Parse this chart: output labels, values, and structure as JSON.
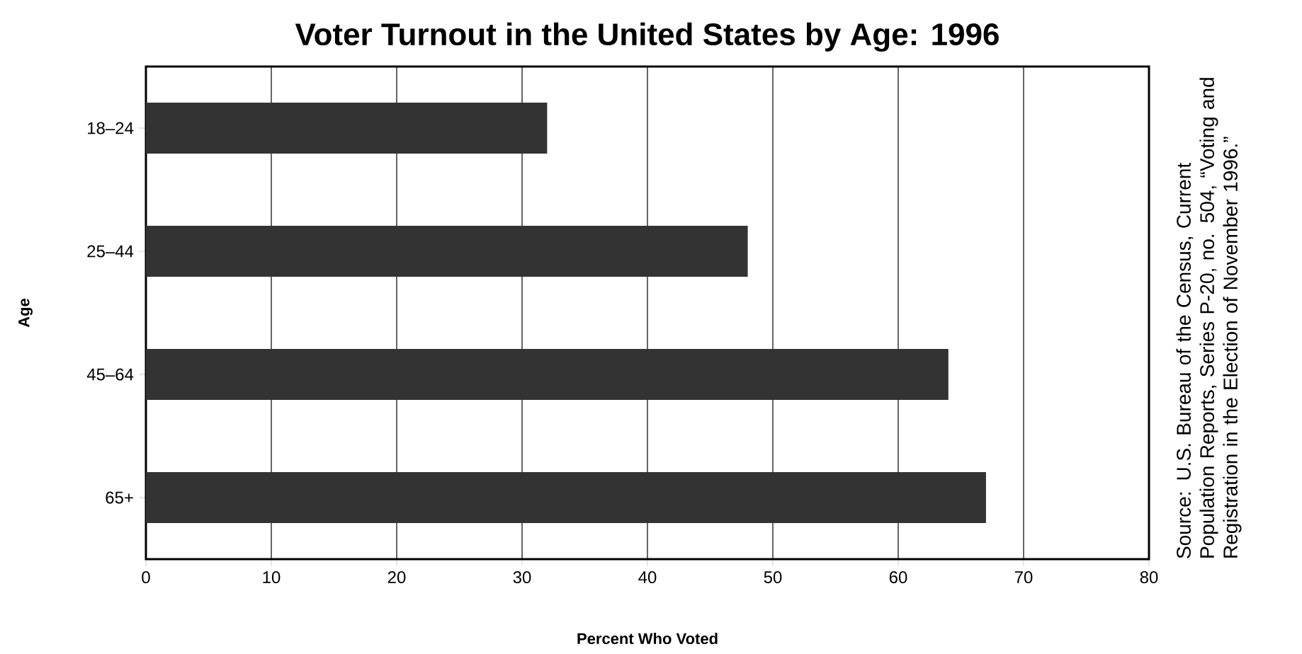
{
  "chart_data": {
    "type": "bar",
    "orientation": "horizontal",
    "title": "Voter Turnout in the United States by Age: 1996",
    "xlabel": "Percent Who Voted",
    "ylabel": "Age",
    "categories": [
      "18–24",
      "25–44",
      "45–64",
      "65+"
    ],
    "values": [
      32,
      48,
      64,
      67
    ],
    "color": "#333333",
    "xlim": [
      0,
      80
    ],
    "xticks": [
      0,
      10,
      20,
      30,
      40,
      50,
      60,
      70,
      80
    ],
    "grid": "x",
    "annotations": [
      "Source: U.S. Bureau of the Census, Current Population Reports, Series P-20, no. 504, “Voting and Registration in the Election of November 1996.”"
    ]
  }
}
